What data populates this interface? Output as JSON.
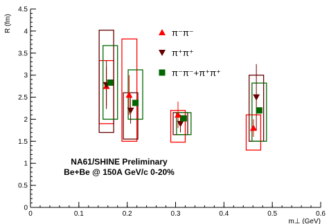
{
  "chart_data": {
    "type": "scatter",
    "title": "",
    "xlabel": "m⊥ (GeV)",
    "ylabel": "R (fm)",
    "xlim": [
      0,
      0.6
    ],
    "ylim": [
      0,
      4.5
    ],
    "x_major_ticks": [
      0,
      0.1,
      0.2,
      0.3,
      0.4,
      0.5,
      0.6
    ],
    "x_tick_labels": [
      "0",
      "0.1",
      "0.2",
      "0.3",
      "0.4",
      "0.5",
      "0.6"
    ],
    "y_major_ticks": [
      0,
      0.5,
      1,
      1.5,
      2,
      2.5,
      3,
      3.5,
      4,
      4.5
    ],
    "y_tick_labels": [
      "0",
      "0.5",
      "1",
      "1.5",
      "2",
      "2.5",
      "3",
      "3.5",
      "4",
      "4.5"
    ],
    "grid": false,
    "legend_position": "top-center",
    "series": [
      {
        "name": "π⁻π⁻",
        "marker": "triangle-up",
        "color": "#ff0000",
        "points": [
          {
            "x": 0.157,
            "y": 2.75,
            "err": 0.45,
            "sys_x": [
              0.142,
              0.172
            ],
            "sys_y": [
              1.9,
              3.33
            ]
          },
          {
            "x": 0.204,
            "y": 2.55,
            "err": 0.45,
            "sys_x": [
              0.189,
              0.22
            ],
            "sys_y": [
              1.5,
              3.82
            ]
          },
          {
            "x": 0.305,
            "y": 2.1,
            "err": 0.3,
            "sys_x": [
              0.29,
              0.32
            ],
            "sys_y": [
              1.48,
              2.2
            ]
          },
          {
            "x": 0.461,
            "y": 1.8,
            "err": 0.2,
            "sys_x": [
              0.446,
              0.476
            ],
            "sys_y": [
              1.3,
              2.1
            ]
          }
        ]
      },
      {
        "name": "π⁺π⁺",
        "marker": "triangle-down",
        "color": "#660000",
        "points": [
          {
            "x": 0.157,
            "y": 2.78,
            "err": 0.55,
            "sys_x": [
              0.142,
              0.172
            ],
            "sys_y": [
              1.7,
              4.02
            ]
          },
          {
            "x": 0.207,
            "y": 2.2,
            "err": 0.3,
            "sys_x": [
              0.192,
              0.222
            ],
            "sys_y": [
              1.55,
              2.6
            ]
          },
          {
            "x": 0.31,
            "y": 1.9,
            "err": 0.2,
            "sys_x": [
              0.295,
              0.325
            ],
            "sys_y": [
              1.65,
              2.15
            ]
          },
          {
            "x": 0.467,
            "y": 2.5,
            "err": 0.75,
            "sys_x": [
              0.452,
              0.482
            ],
            "sys_y": [
              1.5,
              3.0
            ]
          }
        ]
      },
      {
        "name": "π⁻π⁻+π⁺π⁺",
        "marker": "square",
        "color": "#006600",
        "points": [
          {
            "x": 0.165,
            "y": 2.83,
            "err": 0.0,
            "sys_x": [
              0.15,
              0.18
            ],
            "sys_y": [
              2.0,
              3.67
            ]
          },
          {
            "x": 0.217,
            "y": 2.37,
            "err": 0.0,
            "sys_x": [
              0.202,
              0.232
            ],
            "sys_y": [
              2.0,
              3.12
            ]
          },
          {
            "x": 0.317,
            "y": 2.02,
            "err": 0.0,
            "sys_x": [
              0.302,
              0.332
            ],
            "sys_y": [
              1.65,
              2.15
            ]
          },
          {
            "x": 0.473,
            "y": 2.2,
            "err": 0.0,
            "sys_x": [
              0.458,
              0.488
            ],
            "sys_y": [
              1.5,
              2.82
            ]
          }
        ]
      }
    ],
    "annotation_lines": [
      "NA61/SHINE Preliminary",
      "Be+Be @ 150A GeV/c 0-20%"
    ]
  }
}
